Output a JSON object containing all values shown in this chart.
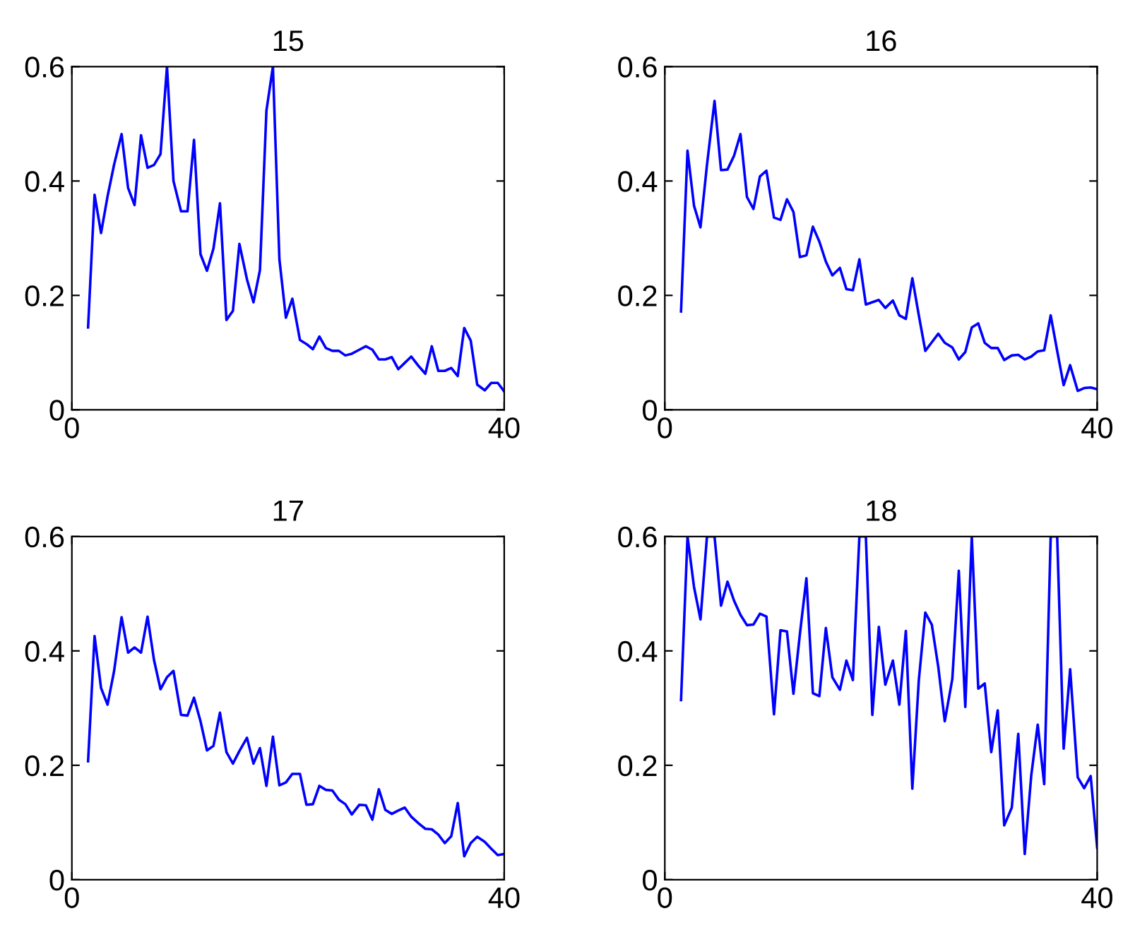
{
  "chart_data": [
    {
      "type": "line",
      "title": "15",
      "xlim": [
        0,
        40
      ],
      "ylim": [
        0,
        0.6
      ],
      "xticks": [
        0,
        40
      ],
      "yticks": [
        0,
        0.2,
        0.4,
        0.6
      ],
      "x": [
        1.5,
        2.1,
        2.7,
        3.3,
        3.9,
        4.6,
        5.2,
        5.8,
        6.4,
        7.0,
        7.6,
        8.2,
        8.8,
        9.4,
        10.1,
        10.7,
        11.3,
        11.9,
        12.5,
        13.1,
        13.7,
        14.3,
        14.9,
        15.5,
        16.2,
        16.8,
        17.4,
        18.0,
        18.6,
        19.2,
        19.8,
        20.4,
        21.1,
        21.7,
        22.3,
        22.9,
        23.5,
        24.1,
        24.7,
        25.3,
        25.9,
        26.6,
        27.2,
        27.8,
        28.4,
        29.0,
        29.6,
        30.2,
        30.8,
        31.4,
        32.1,
        32.7,
        33.3,
        33.9,
        34.5,
        35.1,
        35.7,
        36.3,
        36.9,
        37.5,
        38.2,
        38.8,
        39.4,
        40.0
      ],
      "series": [
        {
          "color": "#0000ff",
          "values": [
            0.144,
            0.376,
            0.309,
            0.373,
            0.428,
            0.482,
            0.388,
            0.358,
            0.48,
            0.423,
            0.428,
            0.447,
            0.6,
            0.4,
            0.347,
            0.347,
            0.472,
            0.272,
            0.243,
            0.282,
            0.361,
            0.157,
            0.173,
            0.29,
            0.228,
            0.188,
            0.244,
            0.523,
            0.6,
            0.263,
            0.161,
            0.194,
            0.122,
            0.115,
            0.106,
            0.128,
            0.108,
            0.103,
            0.103,
            0.095,
            0.098,
            0.105,
            0.111,
            0.105,
            0.088,
            0.088,
            0.092,
            0.071,
            0.082,
            0.093,
            0.076,
            0.063,
            0.111,
            0.068,
            0.068,
            0.073,
            0.059,
            0.143,
            0.121,
            0.044,
            0.034,
            0.047,
            0.047,
            0.032
          ]
        }
      ]
    },
    {
      "type": "line",
      "title": "16",
      "xlim": [
        0,
        40
      ],
      "ylim": [
        0,
        0.6
      ],
      "xticks": [
        0,
        40
      ],
      "yticks": [
        0,
        0.2,
        0.4,
        0.6
      ],
      "x": [
        1.5,
        2.1,
        2.7,
        3.3,
        3.9,
        4.6,
        5.2,
        5.8,
        6.4,
        7.0,
        7.6,
        8.2,
        8.8,
        9.4,
        10.1,
        10.7,
        11.3,
        11.9,
        12.5,
        13.1,
        13.7,
        14.3,
        14.9,
        15.5,
        16.2,
        16.8,
        17.4,
        18.0,
        18.6,
        19.2,
        19.8,
        20.4,
        21.1,
        21.7,
        22.3,
        22.9,
        23.5,
        24.1,
        24.7,
        25.3,
        25.9,
        26.6,
        27.2,
        27.8,
        28.4,
        29.0,
        29.6,
        30.2,
        30.8,
        31.4,
        32.1,
        32.7,
        33.3,
        33.9,
        34.5,
        35.1,
        35.7,
        36.3,
        36.9,
        37.5,
        38.2,
        38.8,
        39.4,
        40.0
      ],
      "series": [
        {
          "color": "#0000ff",
          "values": [
            0.172,
            0.453,
            0.357,
            0.319,
            0.428,
            0.54,
            0.419,
            0.42,
            0.444,
            0.482,
            0.372,
            0.351,
            0.408,
            0.418,
            0.336,
            0.332,
            0.368,
            0.346,
            0.267,
            0.27,
            0.32,
            0.294,
            0.259,
            0.235,
            0.248,
            0.211,
            0.209,
            0.263,
            0.184,
            0.188,
            0.192,
            0.178,
            0.191,
            0.165,
            0.159,
            0.23,
            0.165,
            0.103,
            0.118,
            0.133,
            0.117,
            0.109,
            0.088,
            0.101,
            0.144,
            0.151,
            0.117,
            0.108,
            0.108,
            0.087,
            0.095,
            0.096,
            0.088,
            0.093,
            0.102,
            0.104,
            0.165,
            0.103,
            0.043,
            0.078,
            0.033,
            0.038,
            0.039,
            0.036
          ]
        }
      ]
    },
    {
      "type": "line",
      "title": "17",
      "xlim": [
        0,
        40
      ],
      "ylim": [
        0,
        0.6
      ],
      "xticks": [
        0,
        40
      ],
      "yticks": [
        0,
        0.2,
        0.4,
        0.6
      ],
      "x": [
        1.5,
        2.1,
        2.7,
        3.3,
        3.9,
        4.6,
        5.2,
        5.8,
        6.4,
        7.0,
        7.6,
        8.2,
        8.8,
        9.4,
        10.1,
        10.7,
        11.3,
        11.9,
        12.5,
        13.1,
        13.7,
        14.3,
        14.9,
        15.5,
        16.2,
        16.8,
        17.4,
        18.0,
        18.6,
        19.2,
        19.8,
        20.4,
        21.1,
        21.7,
        22.3,
        22.9,
        23.5,
        24.1,
        24.7,
        25.3,
        25.9,
        26.6,
        27.2,
        27.8,
        28.4,
        29.0,
        29.6,
        30.2,
        30.8,
        31.4,
        32.1,
        32.7,
        33.3,
        33.9,
        34.5,
        35.1,
        35.7,
        36.3,
        36.9,
        37.5,
        38.2,
        38.8,
        39.4,
        40.0
      ],
      "series": [
        {
          "color": "#0000ff",
          "values": [
            0.207,
            0.426,
            0.335,
            0.306,
            0.364,
            0.459,
            0.397,
            0.406,
            0.397,
            0.46,
            0.384,
            0.333,
            0.354,
            0.365,
            0.288,
            0.287,
            0.318,
            0.277,
            0.226,
            0.234,
            0.292,
            0.223,
            0.203,
            0.225,
            0.248,
            0.203,
            0.23,
            0.164,
            0.25,
            0.165,
            0.17,
            0.185,
            0.185,
            0.131,
            0.132,
            0.164,
            0.157,
            0.156,
            0.14,
            0.132,
            0.114,
            0.131,
            0.13,
            0.105,
            0.158,
            0.122,
            0.115,
            0.121,
            0.126,
            0.11,
            0.098,
            0.089,
            0.088,
            0.079,
            0.064,
            0.076,
            0.134,
            0.041,
            0.064,
            0.075,
            0.066,
            0.054,
            0.043,
            0.045
          ]
        }
      ]
    },
    {
      "type": "line",
      "title": "18",
      "xlim": [
        0,
        40
      ],
      "ylim": [
        0,
        0.6
      ],
      "xticks": [
        0,
        40
      ],
      "yticks": [
        0,
        0.2,
        0.4,
        0.6
      ],
      "x": [
        1.5,
        2.1,
        2.7,
        3.3,
        3.9,
        4.6,
        5.2,
        5.8,
        6.4,
        7.0,
        7.6,
        8.2,
        8.8,
        9.4,
        10.1,
        10.7,
        11.3,
        11.9,
        12.5,
        13.1,
        13.7,
        14.3,
        14.9,
        15.5,
        16.2,
        16.8,
        17.4,
        18.0,
        18.6,
        19.2,
        19.8,
        20.4,
        21.1,
        21.7,
        22.3,
        22.9,
        23.5,
        24.1,
        24.7,
        25.3,
        25.9,
        26.6,
        27.2,
        27.8,
        28.4,
        29.0,
        29.6,
        30.2,
        30.8,
        31.4,
        32.1,
        32.7,
        33.3,
        33.9,
        34.5,
        35.1,
        35.7,
        36.3,
        36.9,
        37.5,
        38.2,
        38.8,
        39.4,
        40.0
      ],
      "series": [
        {
          "color": "#0000ff",
          "values": [
            0.314,
            0.6,
            0.512,
            0.455,
            0.6,
            0.6,
            0.479,
            0.521,
            0.488,
            0.463,
            0.445,
            0.446,
            0.465,
            0.46,
            0.289,
            0.436,
            0.434,
            0.325,
            0.43,
            0.527,
            0.326,
            0.321,
            0.44,
            0.354,
            0.332,
            0.383,
            0.349,
            0.6,
            0.6,
            0.288,
            0.442,
            0.341,
            0.383,
            0.306,
            0.435,
            0.159,
            0.349,
            0.467,
            0.446,
            0.372,
            0.277,
            0.351,
            0.54,
            0.302,
            0.6,
            0.334,
            0.343,
            0.223,
            0.296,
            0.095,
            0.126,
            0.255,
            0.045,
            0.182,
            0.271,
            0.167,
            0.6,
            0.6,
            0.229,
            0.368,
            0.179,
            0.16,
            0.181,
            0.056
          ]
        }
      ]
    }
  ]
}
